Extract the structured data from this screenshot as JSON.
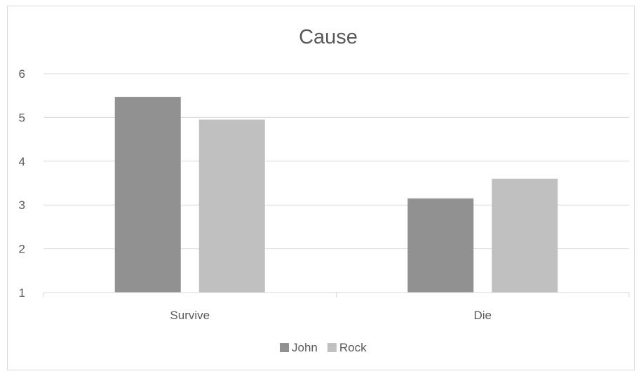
{
  "chart_data": {
    "type": "bar",
    "title": "Cause",
    "xlabel": "",
    "ylabel": "",
    "categories": [
      "Survive",
      "Die"
    ],
    "series": [
      {
        "name": "John",
        "values": [
          5.47,
          3.15
        ],
        "color": "#919191"
      },
      {
        "name": "Rock",
        "values": [
          4.95,
          3.6
        ],
        "color": "#c0c0c0"
      }
    ],
    "ylim": [
      1,
      6
    ],
    "yticks": [
      "1",
      "2",
      "3",
      "4",
      "5",
      "6"
    ],
    "grid": true,
    "legend": "bottom"
  }
}
